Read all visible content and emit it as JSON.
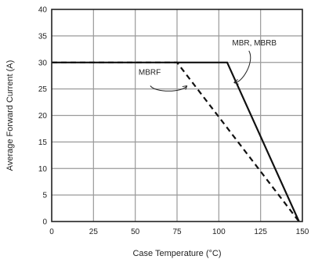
{
  "chart_data": {
    "type": "line",
    "xlabel": "Case Temperature (°C)",
    "ylabel": "Average Forward Current (A)",
    "xlim": [
      0,
      150
    ],
    "ylim": [
      0,
      40
    ],
    "x_ticks": [
      0,
      25,
      50,
      75,
      100,
      125,
      150
    ],
    "y_ticks": [
      0,
      5,
      10,
      15,
      20,
      25,
      30,
      35,
      40
    ],
    "grid": true,
    "series": [
      {
        "name": "MBR, MBRB",
        "style": "solid",
        "color": "#111111",
        "points": [
          [
            0,
            30
          ],
          [
            105,
            30
          ],
          [
            148,
            0
          ]
        ]
      },
      {
        "name": "MBRF",
        "style": "dashed",
        "color": "#111111",
        "points": [
          [
            0,
            30
          ],
          [
            75,
            30
          ],
          [
            148,
            0
          ]
        ]
      }
    ],
    "annotations": [
      {
        "text": "MBR, MBRB",
        "target_series": "MBR, MBRB"
      },
      {
        "text": "MBRF",
        "target_series": "MBRF"
      }
    ]
  }
}
